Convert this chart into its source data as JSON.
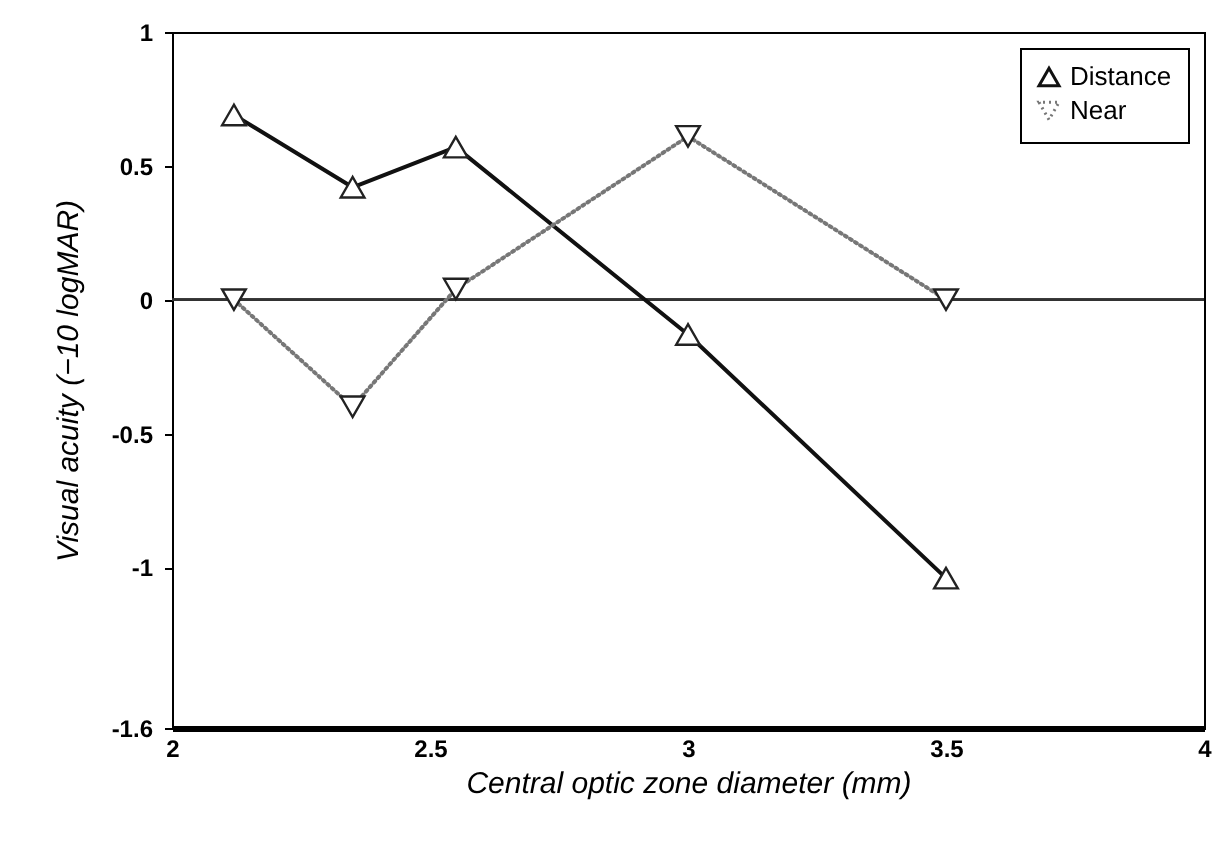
{
  "chart_data": {
    "type": "line",
    "xlabel": "Central optic zone diameter (mm)",
    "ylabel": "Visual acuity (−10 logMAR)",
    "x": [
      2.12,
      2.35,
      2.55,
      3.0,
      3.5
    ],
    "series": [
      {
        "name": "Distance",
        "color": "#111111",
        "marker": "triangle",
        "line_style": "solid",
        "values": [
          0.69,
          0.42,
          0.57,
          -0.13,
          -1.04
        ]
      },
      {
        "name": "Near",
        "color": "#777777",
        "marker": "triangle-down",
        "line_style": "dotted",
        "values": [
          0,
          -0.4,
          0.04,
          0.61,
          0
        ]
      }
    ],
    "xlim": [
      2,
      4
    ],
    "xticks": [
      2,
      2.5,
      3,
      3.5,
      4
    ],
    "ylim": [
      -1.6,
      1
    ],
    "yticks": [
      -1.6,
      -1,
      -0.5,
      0,
      0.5,
      1
    ],
    "ref_lines": [
      {
        "axis": "y",
        "value": 0,
        "color": "#333333"
      }
    ],
    "legend": "top right",
    "grid": false
  }
}
